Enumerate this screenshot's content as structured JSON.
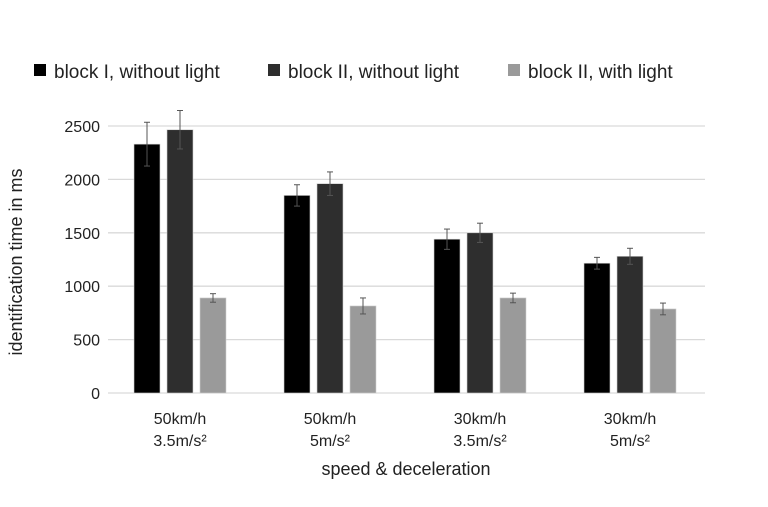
{
  "chart_data": {
    "type": "bar",
    "title": "",
    "xlabel": "speed & deceleration",
    "ylabel": "identification time in ms",
    "ylim": [
      0,
      2500
    ],
    "yticks": [
      0,
      500,
      1000,
      1500,
      2000,
      2500
    ],
    "grid": true,
    "legend_position": "top",
    "categories": [
      [
        "50km/h",
        "3.5m/s²"
      ],
      [
        "50km/h",
        "5m/s²"
      ],
      [
        "30km/h",
        "3.5m/s²"
      ],
      [
        "30km/h",
        "5m/s²"
      ]
    ],
    "series": [
      {
        "name": "block I, without light",
        "color": "#000000",
        "values": [
          2330,
          1850,
          1440,
          1215
        ],
        "errors": [
          205,
          100,
          95,
          55
        ]
      },
      {
        "name": "block II, without light",
        "color": "#2e2e2e",
        "values": [
          2465,
          1960,
          1500,
          1280
        ],
        "errors": [
          180,
          110,
          90,
          75
        ]
      },
      {
        "name": "block II, with light",
        "color": "#9a9a9a",
        "values": [
          890,
          815,
          890,
          787
        ],
        "errors": [
          40,
          75,
          45,
          55
        ]
      }
    ]
  }
}
